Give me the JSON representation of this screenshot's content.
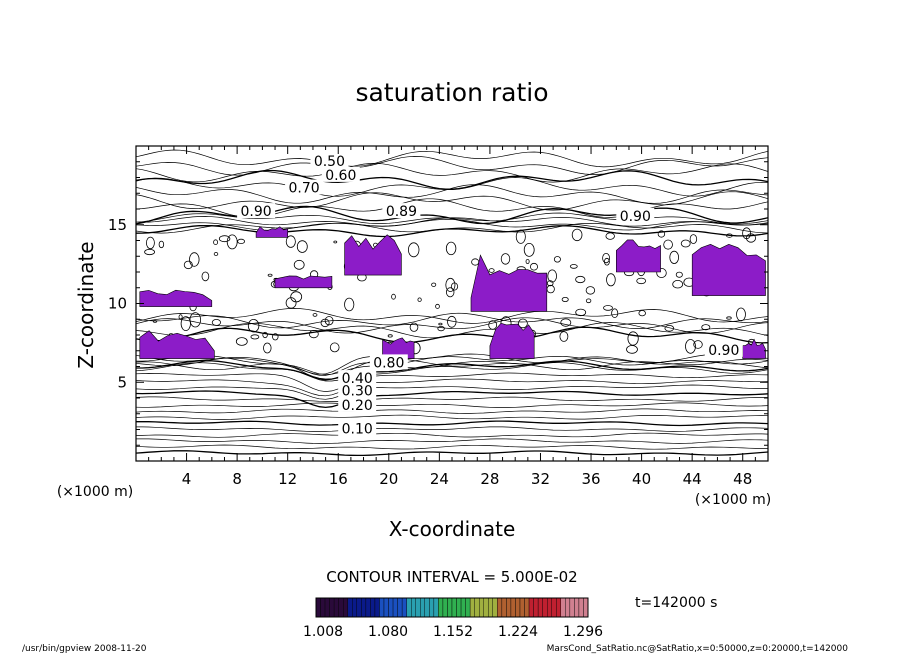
{
  "chart_data": {
    "type": "contour",
    "title": "saturation ratio",
    "xlabel": "X-coordinate",
    "ylabel": "Z-coordinate",
    "x_unit": "(×1000 m)",
    "z_unit": "(×1000 m)",
    "xlim": [
      0,
      50
    ],
    "zlim": [
      0,
      20
    ],
    "x_ticks": [
      4,
      8,
      12,
      16,
      20,
      24,
      28,
      32,
      36,
      40,
      44,
      48
    ],
    "z_ticks": [
      5,
      10,
      15
    ],
    "contour_labels": [
      {
        "text": "0.10",
        "x": 17.5,
        "z": 2.0
      },
      {
        "text": "0.20",
        "x": 17.5,
        "z": 3.5
      },
      {
        "text": "0.30",
        "x": 17.5,
        "z": 4.4
      },
      {
        "text": "0.40",
        "x": 17.5,
        "z": 5.2
      },
      {
        "text": "0.50",
        "x": 15.3,
        "z": 19.0
      },
      {
        "text": "0.60",
        "x": 16.2,
        "z": 18.1
      },
      {
        "text": "0.70",
        "x": 13.3,
        "z": 17.3
      },
      {
        "text": "0.90",
        "x": 9.5,
        "z": 15.8
      },
      {
        "text": "0.89",
        "x": 21.0,
        "z": 15.8
      },
      {
        "text": "0.90",
        "x": 39.5,
        "z": 15.5
      },
      {
        "text": "0.90",
        "x": 46.5,
        "z": 7.0
      },
      {
        "text": "0.80",
        "x": 20.0,
        "z": 6.2
      }
    ],
    "supersaturated_regions": [
      {
        "x": [
          0.3,
          6.2
        ],
        "z": [
          6.5,
          8.5
        ]
      },
      {
        "x": [
          0.3,
          6.0
        ],
        "z": [
          9.8,
          11.0
        ]
      },
      {
        "x": [
          9.5,
          12.0
        ],
        "z": [
          14.2,
          15.0
        ]
      },
      {
        "x": [
          11.0,
          15.5
        ],
        "z": [
          11.0,
          12.0
        ]
      },
      {
        "x": [
          16.5,
          21.0
        ],
        "z": [
          11.8,
          14.8
        ]
      },
      {
        "x": [
          19.5,
          22.0
        ],
        "z": [
          6.5,
          8.0
        ]
      },
      {
        "x": [
          26.5,
          32.5
        ],
        "z": [
          9.5,
          13.5
        ]
      },
      {
        "x": [
          28.0,
          31.5
        ],
        "z": [
          6.5,
          9.0
        ]
      },
      {
        "x": [
          38.0,
          41.5
        ],
        "z": [
          12.0,
          14.5
        ]
      },
      {
        "x": [
          44.0,
          49.8
        ],
        "z": [
          10.5,
          14.8
        ]
      },
      {
        "x": [
          48.0,
          49.8
        ],
        "z": [
          6.5,
          8.0
        ]
      }
    ],
    "contour_interval_text": "CONTOUR INTERVAL = 5.000E-02",
    "colorbar": {
      "tick_labels": [
        "1.008",
        "1.080",
        "1.152",
        "1.224",
        "1.296"
      ],
      "colors": [
        "#2a0a3a",
        "#0a1a8a",
        "#1a50c0",
        "#2aa0b0",
        "#30b050",
        "#a0b040",
        "#b06030",
        "#c02030",
        "#d08090"
      ]
    },
    "time_label": "t=142000 s",
    "footer_left": "/usr/bin/gpview  2008-11-20",
    "footer_right": "MarsCond_SatRatio.nc@SatRatio,x=0:50000,z=0:20000,t=142000",
    "fill_color": "#8c1cc8"
  }
}
